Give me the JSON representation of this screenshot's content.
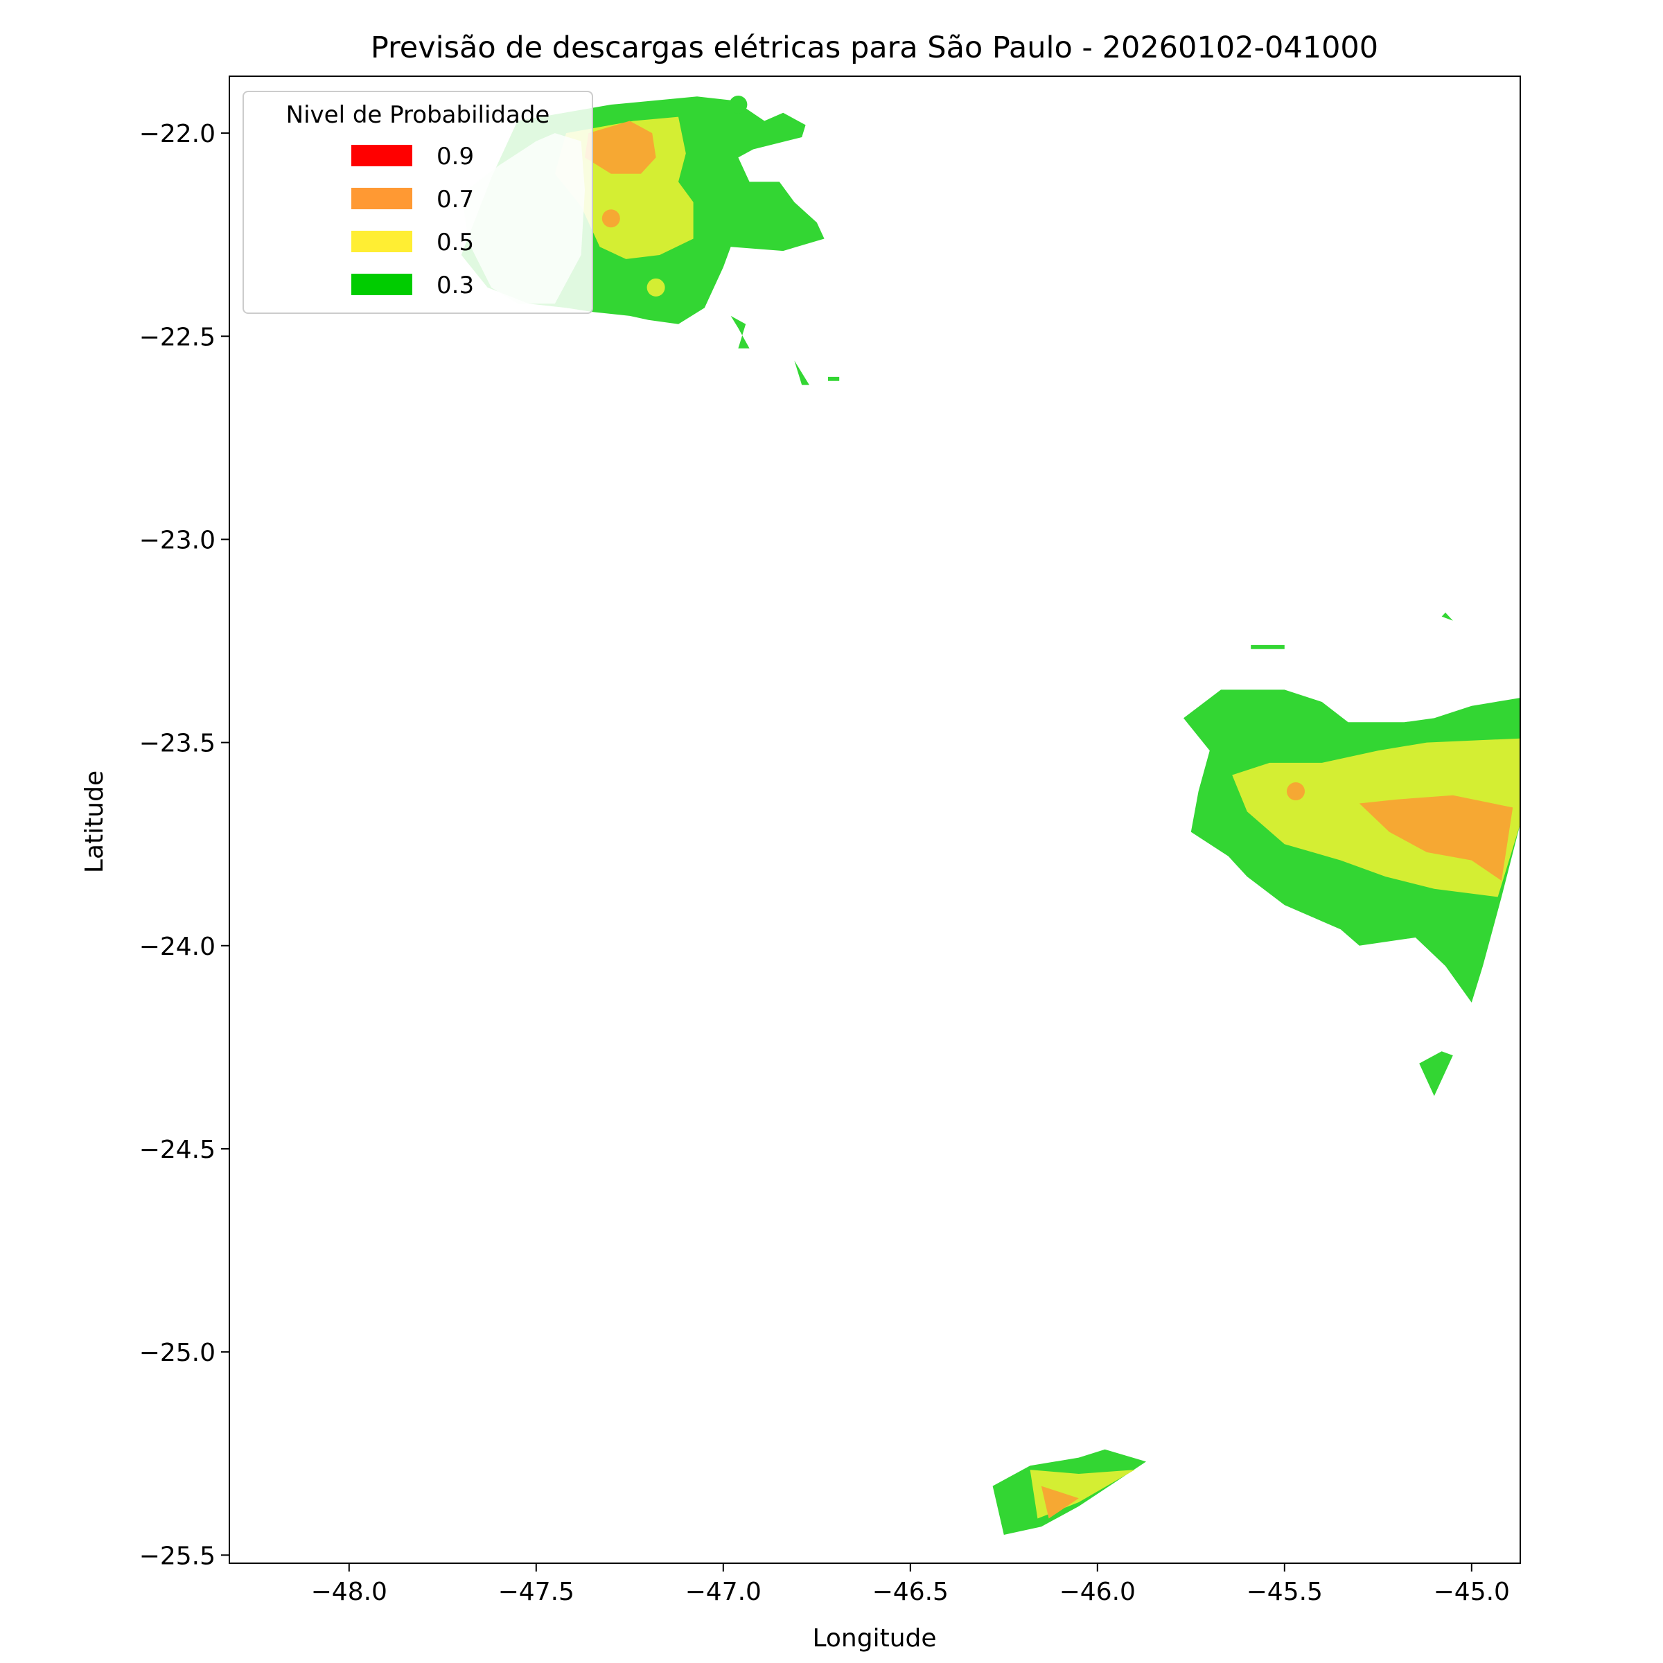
{
  "title": "Previsão de descargas elétricas para São Paulo - 20260102-041000",
  "axes": {
    "xlabel": "Longitude",
    "ylabel": "Latitude",
    "xlim": [
      -48.32,
      -44.87
    ],
    "ylim": [
      -25.52,
      -21.86
    ],
    "xticks": [
      {
        "value": -48.0,
        "label": "−48.0"
      },
      {
        "value": -47.5,
        "label": "−47.5"
      },
      {
        "value": -47.0,
        "label": "−47.0"
      },
      {
        "value": -46.5,
        "label": "−46.5"
      },
      {
        "value": -46.0,
        "label": "−46.0"
      },
      {
        "value": -45.5,
        "label": "−45.5"
      },
      {
        "value": -45.0,
        "label": "−45.0"
      }
    ],
    "yticks": [
      {
        "value": -22.0,
        "label": "−22.0"
      },
      {
        "value": -22.5,
        "label": "−22.5"
      },
      {
        "value": -23.0,
        "label": "−23.0"
      },
      {
        "value": -23.5,
        "label": "−23.5"
      },
      {
        "value": -24.0,
        "label": "−24.0"
      },
      {
        "value": -24.5,
        "label": "−24.5"
      },
      {
        "value": -25.0,
        "label": "−25.0"
      },
      {
        "value": -25.5,
        "label": "−25.5"
      }
    ]
  },
  "legend": {
    "title": "Nivel de Probabilidade",
    "placement": "top-left",
    "items": [
      {
        "label": "0.9",
        "color": "#ff0000"
      },
      {
        "label": "0.7",
        "color": "#ff9933"
      },
      {
        "label": "0.5",
        "color": "#ffee33"
      },
      {
        "label": "0.3",
        "color": "#00cc00"
      }
    ]
  },
  "colors": {
    "level_0_3": "#33d633",
    "level_0_5": "#d4ee33",
    "level_0_7": "#f6a833",
    "radar_overlay": "#ecfaec"
  },
  "chart_data": {
    "type": "contour-map",
    "regions": [
      {
        "level": 0.3,
        "points": [
          [
            -47.55,
            -21.97
          ],
          [
            -47.3,
            -21.93
          ],
          [
            -47.07,
            -21.91
          ],
          [
            -46.97,
            -21.92
          ],
          [
            -46.89,
            -21.97
          ],
          [
            -46.84,
            -21.95
          ],
          [
            -46.78,
            -21.98
          ],
          [
            -46.79,
            -22.01
          ],
          [
            -46.92,
            -22.04
          ],
          [
            -46.96,
            -22.06
          ],
          [
            -46.93,
            -22.12
          ],
          [
            -46.85,
            -22.12
          ],
          [
            -46.81,
            -22.17
          ],
          [
            -46.75,
            -22.22
          ],
          [
            -46.73,
            -22.26
          ],
          [
            -46.84,
            -22.29
          ],
          [
            -46.98,
            -22.28
          ],
          [
            -47.0,
            -22.33
          ],
          [
            -47.05,
            -22.43
          ],
          [
            -47.12,
            -22.47
          ],
          [
            -47.2,
            -22.46
          ],
          [
            -47.25,
            -22.45
          ],
          [
            -47.35,
            -22.44
          ],
          [
            -47.42,
            -22.43
          ],
          [
            -47.52,
            -22.42
          ],
          [
            -47.63,
            -22.38
          ],
          [
            -47.7,
            -22.3
          ],
          [
            -47.62,
            -22.11
          ],
          [
            -47.55,
            -21.97
          ]
        ]
      },
      {
        "level": 0.3,
        "points": [
          [
            -46.98,
            -22.45
          ],
          [
            -46.94,
            -22.47
          ],
          [
            -46.96,
            -22.53
          ],
          [
            -46.93,
            -22.53
          ],
          [
            -46.96,
            -22.48
          ],
          [
            -46.98,
            -22.45
          ]
        ]
      },
      {
        "level": 0.3,
        "points": [
          [
            -46.81,
            -22.56
          ],
          [
            -46.79,
            -22.62
          ],
          [
            -46.77,
            -22.62
          ],
          [
            -46.81,
            -22.56
          ]
        ]
      },
      {
        "level": 0.3,
        "points": [
          [
            -46.72,
            -22.6
          ],
          [
            -46.69,
            -22.6
          ],
          [
            -46.69,
            -22.61
          ],
          [
            -46.72,
            -22.61
          ],
          [
            -46.72,
            -22.6
          ]
        ]
      },
      {
        "level": 0.5,
        "points": [
          [
            -47.42,
            -22.0
          ],
          [
            -47.24,
            -21.97
          ],
          [
            -47.12,
            -21.96
          ],
          [
            -47.1,
            -22.05
          ],
          [
            -47.12,
            -22.12
          ],
          [
            -47.08,
            -22.17
          ],
          [
            -47.08,
            -22.26
          ],
          [
            -47.17,
            -22.3
          ],
          [
            -47.26,
            -22.31
          ],
          [
            -47.33,
            -22.28
          ],
          [
            -47.38,
            -22.18
          ],
          [
            -47.45,
            -22.1
          ],
          [
            -47.42,
            -22.0
          ]
        ]
      },
      {
        "level": 0.7,
        "points": [
          [
            -47.36,
            -22.0
          ],
          [
            -47.25,
            -21.97
          ],
          [
            -47.19,
            -22.0
          ],
          [
            -47.18,
            -22.06
          ],
          [
            -47.22,
            -22.1
          ],
          [
            -47.3,
            -22.1
          ],
          [
            -47.37,
            -22.06
          ],
          [
            -47.36,
            -22.0
          ]
        ]
      },
      {
        "level": 0.3,
        "points": [
          [
            -45.77,
            -23.44
          ],
          [
            -45.67,
            -23.37
          ],
          [
            -45.5,
            -23.37
          ],
          [
            -45.4,
            -23.4
          ],
          [
            -45.33,
            -23.45
          ],
          [
            -45.18,
            -23.45
          ],
          [
            -45.1,
            -23.44
          ],
          [
            -45.0,
            -23.41
          ],
          [
            -44.87,
            -23.39
          ],
          [
            -44.87,
            -23.7
          ],
          [
            -44.92,
            -23.88
          ],
          [
            -44.97,
            -24.05
          ],
          [
            -45.0,
            -24.14
          ],
          [
            -45.07,
            -24.05
          ],
          [
            -45.15,
            -23.98
          ],
          [
            -45.3,
            -24.0
          ],
          [
            -45.35,
            -23.96
          ],
          [
            -45.5,
            -23.9
          ],
          [
            -45.6,
            -23.83
          ],
          [
            -45.65,
            -23.78
          ],
          [
            -45.75,
            -23.72
          ],
          [
            -45.73,
            -23.62
          ],
          [
            -45.7,
            -23.52
          ],
          [
            -45.77,
            -23.44
          ]
        ]
      },
      {
        "level": 0.3,
        "points": [
          [
            -45.08,
            -24.26
          ],
          [
            -45.14,
            -24.29
          ],
          [
            -45.1,
            -24.37
          ],
          [
            -45.05,
            -24.27
          ],
          [
            -45.08,
            -24.26
          ]
        ]
      },
      {
        "level": 0.3,
        "points": [
          [
            -45.07,
            -23.18
          ],
          [
            -45.05,
            -23.2
          ],
          [
            -45.08,
            -23.19
          ],
          [
            -45.07,
            -23.18
          ]
        ]
      },
      {
        "level": 0.3,
        "points": [
          [
            -45.59,
            -23.26
          ],
          [
            -45.5,
            -23.26
          ],
          [
            -45.5,
            -23.27
          ],
          [
            -45.59,
            -23.27
          ],
          [
            -45.59,
            -23.26
          ]
        ]
      },
      {
        "level": 0.5,
        "points": [
          [
            -45.64,
            -23.58
          ],
          [
            -45.54,
            -23.55
          ],
          [
            -45.4,
            -23.55
          ],
          [
            -45.25,
            -23.52
          ],
          [
            -45.12,
            -23.5
          ],
          [
            -44.87,
            -23.49
          ],
          [
            -44.87,
            -23.7
          ],
          [
            -44.93,
            -23.88
          ],
          [
            -45.1,
            -23.86
          ],
          [
            -45.23,
            -23.83
          ],
          [
            -45.35,
            -23.79
          ],
          [
            -45.5,
            -23.75
          ],
          [
            -45.6,
            -23.67
          ],
          [
            -45.64,
            -23.58
          ]
        ]
      },
      {
        "level": 0.7,
        "points": [
          [
            -45.3,
            -23.65
          ],
          [
            -45.2,
            -23.64
          ],
          [
            -45.05,
            -23.63
          ],
          [
            -44.89,
            -23.66
          ],
          [
            -44.92,
            -23.84
          ],
          [
            -45.0,
            -23.79
          ],
          [
            -45.12,
            -23.77
          ],
          [
            -45.22,
            -23.72
          ],
          [
            -45.3,
            -23.65
          ]
        ]
      },
      {
        "level": 0.3,
        "points": [
          [
            -46.28,
            -25.33
          ],
          [
            -46.18,
            -25.28
          ],
          [
            -46.05,
            -25.26
          ],
          [
            -45.98,
            -25.24
          ],
          [
            -45.87,
            -25.27
          ],
          [
            -46.05,
            -25.38
          ],
          [
            -46.15,
            -25.43
          ],
          [
            -46.25,
            -25.45
          ],
          [
            -46.28,
            -25.33
          ]
        ]
      },
      {
        "level": 0.5,
        "points": [
          [
            -46.18,
            -25.29
          ],
          [
            -46.05,
            -25.3
          ],
          [
            -45.9,
            -25.29
          ],
          [
            -46.05,
            -25.37
          ],
          [
            -46.16,
            -25.41
          ],
          [
            -46.18,
            -25.29
          ]
        ]
      },
      {
        "level": 0.7,
        "points": [
          [
            -46.15,
            -25.33
          ],
          [
            -46.05,
            -25.36
          ],
          [
            -46.13,
            -25.41
          ],
          [
            -46.15,
            -25.33
          ]
        ]
      }
    ],
    "overlay": {
      "points": [
        [
          -47.7,
          -22.15
        ],
        [
          -47.6,
          -22.08
        ],
        [
          -47.5,
          -22.02
        ],
        [
          -47.45,
          -22.0
        ],
        [
          -47.38,
          -22.02
        ],
        [
          -47.37,
          -22.14
        ],
        [
          -47.38,
          -22.3
        ],
        [
          -47.45,
          -22.42
        ],
        [
          -47.55,
          -22.42
        ],
        [
          -47.62,
          -22.38
        ],
        [
          -47.68,
          -22.27
        ],
        [
          -47.7,
          -22.15
        ]
      ]
    },
    "points": [
      {
        "lon": -46.96,
        "lat": -21.93,
        "level": 0.3
      },
      {
        "lon": -47.3,
        "lat": -22.21,
        "level": 0.7
      },
      {
        "lon": -47.18,
        "lat": -22.38,
        "level": 0.5
      },
      {
        "lon": -45.47,
        "lat": -23.62,
        "level": 0.7
      }
    ]
  }
}
